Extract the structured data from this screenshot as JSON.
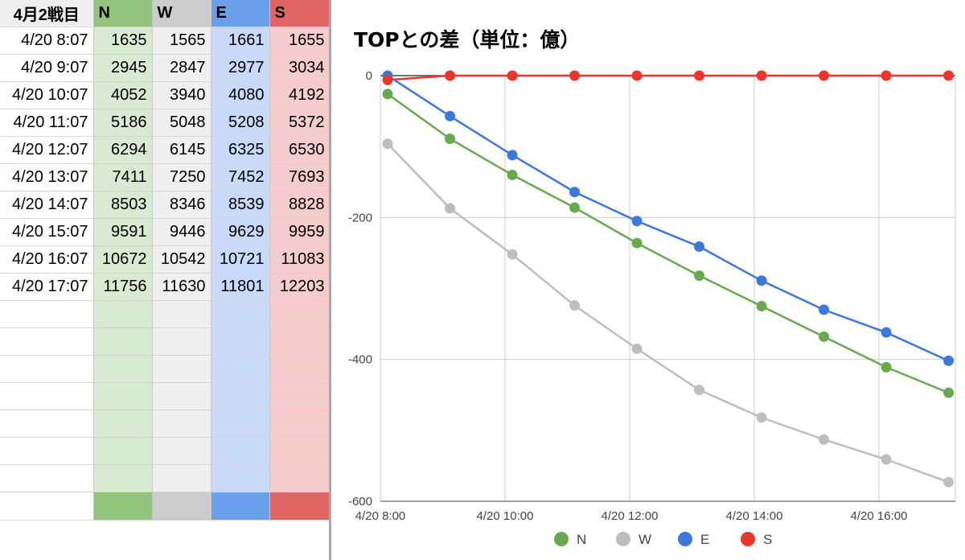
{
  "sheet": {
    "header": [
      "4月2戦目",
      "N",
      "W",
      "E",
      "S"
    ],
    "rows": [
      [
        "4/20 8:07",
        "1635",
        "1565",
        "1661",
        "1655"
      ],
      [
        "4/20 9:07",
        "2945",
        "2847",
        "2977",
        "3034"
      ],
      [
        "4/20 10:07",
        "4052",
        "3940",
        "4080",
        "4192"
      ],
      [
        "4/20 11:07",
        "5186",
        "5048",
        "5208",
        "5372"
      ],
      [
        "4/20 12:07",
        "6294",
        "6145",
        "6325",
        "6530"
      ],
      [
        "4/20 13:07",
        "7411",
        "7250",
        "7452",
        "7693"
      ],
      [
        "4/20 14:07",
        "8503",
        "8346",
        "8539",
        "8828"
      ],
      [
        "4/20 15:07",
        "9591",
        "9446",
        "9629",
        "9959"
      ],
      [
        "4/20 16:07",
        "10672",
        "10542",
        "10721",
        "11083"
      ],
      [
        "4/20 17:07",
        "11756",
        "11630",
        "11801",
        "12203"
      ]
    ],
    "empty_rows": 7
  },
  "colors": {
    "N": "#6aa84f",
    "W": "#bdbdbd",
    "E": "#3c78d8",
    "S": "#e8372c"
  },
  "chart_data": {
    "type": "line",
    "title": "TOPとの差（単位：億）",
    "x": [
      "4/20 8:07",
      "4/20 9:07",
      "4/20 10:07",
      "4/20 11:07",
      "4/20 12:07",
      "4/20 13:07",
      "4/20 14:07",
      "4/20 15:07",
      "4/20 16:07",
      "4/20 17:07"
    ],
    "x_ticks": [
      "4/20 8:00",
      "4/20 10:00",
      "4/20 12:00",
      "4/20 14:00",
      "4/20 16:00"
    ],
    "series": [
      {
        "name": "N",
        "values": [
          -26,
          -89,
          -140,
          -186,
          -236,
          -282,
          -325,
          -368,
          -411,
          -447
        ]
      },
      {
        "name": "W",
        "values": [
          -96,
          -187,
          -252,
          -324,
          -385,
          -443,
          -482,
          -513,
          -541,
          -573
        ]
      },
      {
        "name": "E",
        "values": [
          0,
          -57,
          -112,
          -164,
          -205,
          -241,
          -289,
          -330,
          -362,
          -402
        ]
      },
      {
        "name": "S",
        "values": [
          -6,
          0,
          0,
          0,
          0,
          0,
          0,
          0,
          0,
          0
        ]
      }
    ],
    "y_ticks": [
      "0",
      "-200",
      "-400",
      "-600"
    ],
    "ylim": [
      -600,
      0
    ],
    "grid": true,
    "legend": "bottom"
  }
}
